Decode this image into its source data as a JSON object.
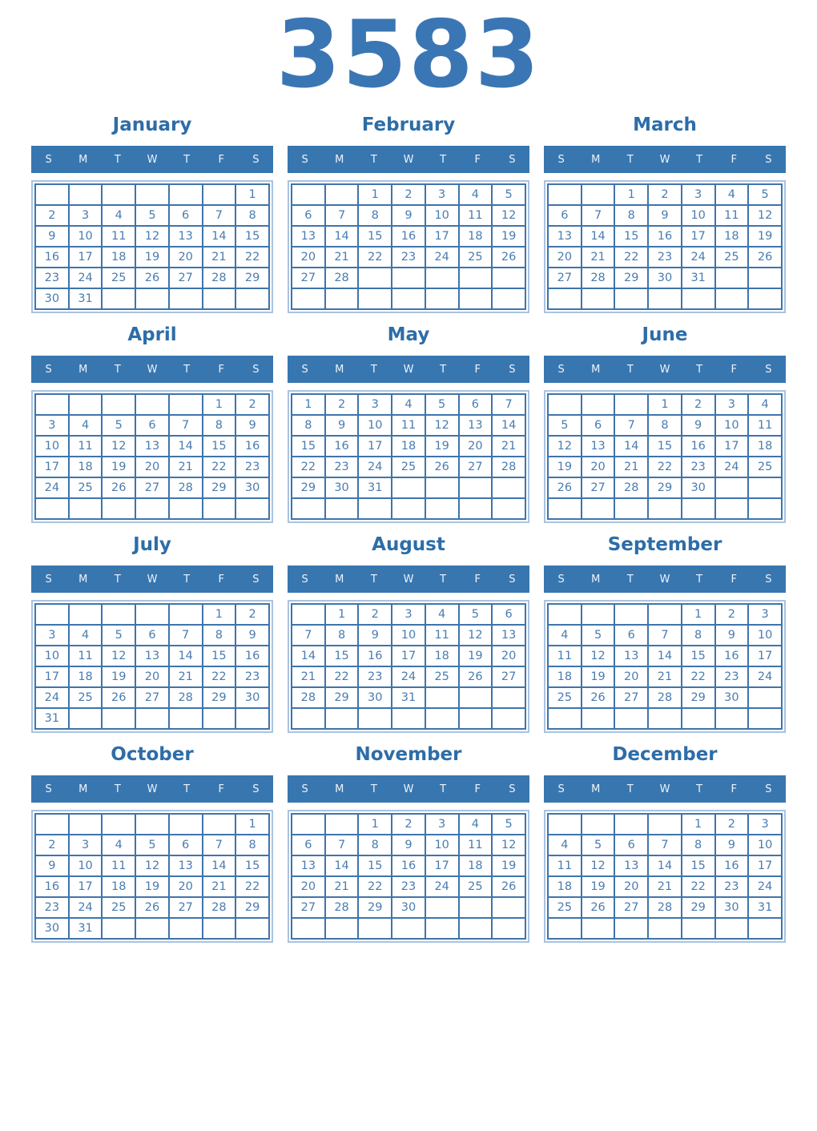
{
  "year": "3583",
  "weekday_headers": [
    "S",
    "M",
    "T",
    "W",
    "T",
    "F",
    "S"
  ],
  "months": [
    {
      "name": "January",
      "weeks": [
        [
          "",
          "",
          "",
          "",
          "",
          "",
          "1"
        ],
        [
          "2",
          "3",
          "4",
          "5",
          "6",
          "7",
          "8"
        ],
        [
          "9",
          "10",
          "11",
          "12",
          "13",
          "14",
          "15"
        ],
        [
          "16",
          "17",
          "18",
          "19",
          "20",
          "21",
          "22"
        ],
        [
          "23",
          "24",
          "25",
          "26",
          "27",
          "28",
          "29"
        ],
        [
          "30",
          "31",
          "",
          "",
          "",
          "",
          ""
        ]
      ]
    },
    {
      "name": "February",
      "weeks": [
        [
          "",
          "",
          "1",
          "2",
          "3",
          "4",
          "5"
        ],
        [
          "6",
          "7",
          "8",
          "9",
          "10",
          "11",
          "12"
        ],
        [
          "13",
          "14",
          "15",
          "16",
          "17",
          "18",
          "19"
        ],
        [
          "20",
          "21",
          "22",
          "23",
          "24",
          "25",
          "26"
        ],
        [
          "27",
          "28",
          "",
          "",
          "",
          "",
          ""
        ],
        [
          "",
          "",
          "",
          "",
          "",
          "",
          ""
        ]
      ]
    },
    {
      "name": "March",
      "weeks": [
        [
          "",
          "",
          "1",
          "2",
          "3",
          "4",
          "5"
        ],
        [
          "6",
          "7",
          "8",
          "9",
          "10",
          "11",
          "12"
        ],
        [
          "13",
          "14",
          "15",
          "16",
          "17",
          "18",
          "19"
        ],
        [
          "20",
          "21",
          "22",
          "23",
          "24",
          "25",
          "26"
        ],
        [
          "27",
          "28",
          "29",
          "30",
          "31",
          "",
          ""
        ],
        [
          "",
          "",
          "",
          "",
          "",
          "",
          ""
        ]
      ]
    },
    {
      "name": "April",
      "weeks": [
        [
          "",
          "",
          "",
          "",
          "",
          "1",
          "2"
        ],
        [
          "3",
          "4",
          "5",
          "6",
          "7",
          "8",
          "9"
        ],
        [
          "10",
          "11",
          "12",
          "13",
          "14",
          "15",
          "16"
        ],
        [
          "17",
          "18",
          "19",
          "20",
          "21",
          "22",
          "23"
        ],
        [
          "24",
          "25",
          "26",
          "27",
          "28",
          "29",
          "30"
        ],
        [
          "",
          "",
          "",
          "",
          "",
          "",
          ""
        ]
      ]
    },
    {
      "name": "May",
      "weeks": [
        [
          "1",
          "2",
          "3",
          "4",
          "5",
          "6",
          "7"
        ],
        [
          "8",
          "9",
          "10",
          "11",
          "12",
          "13",
          "14"
        ],
        [
          "15",
          "16",
          "17",
          "18",
          "19",
          "20",
          "21"
        ],
        [
          "22",
          "23",
          "24",
          "25",
          "26",
          "27",
          "28"
        ],
        [
          "29",
          "30",
          "31",
          "",
          "",
          "",
          ""
        ],
        [
          "",
          "",
          "",
          "",
          "",
          "",
          ""
        ]
      ]
    },
    {
      "name": "June",
      "weeks": [
        [
          "",
          "",
          "",
          "1",
          "2",
          "3",
          "4"
        ],
        [
          "5",
          "6",
          "7",
          "8",
          "9",
          "10",
          "11"
        ],
        [
          "12",
          "13",
          "14",
          "15",
          "16",
          "17",
          "18"
        ],
        [
          "19",
          "20",
          "21",
          "22",
          "23",
          "24",
          "25"
        ],
        [
          "26",
          "27",
          "28",
          "29",
          "30",
          "",
          ""
        ],
        [
          "",
          "",
          "",
          "",
          "",
          "",
          ""
        ]
      ]
    },
    {
      "name": "July",
      "weeks": [
        [
          "",
          "",
          "",
          "",
          "",
          "1",
          "2"
        ],
        [
          "3",
          "4",
          "5",
          "6",
          "7",
          "8",
          "9"
        ],
        [
          "10",
          "11",
          "12",
          "13",
          "14",
          "15",
          "16"
        ],
        [
          "17",
          "18",
          "19",
          "20",
          "21",
          "22",
          "23"
        ],
        [
          "24",
          "25",
          "26",
          "27",
          "28",
          "29",
          "30"
        ],
        [
          "31",
          "",
          "",
          "",
          "",
          "",
          ""
        ]
      ]
    },
    {
      "name": "August",
      "weeks": [
        [
          "",
          "1",
          "2",
          "3",
          "4",
          "5",
          "6"
        ],
        [
          "7",
          "8",
          "9",
          "10",
          "11",
          "12",
          "13"
        ],
        [
          "14",
          "15",
          "16",
          "17",
          "18",
          "19",
          "20"
        ],
        [
          "21",
          "22",
          "23",
          "24",
          "25",
          "26",
          "27"
        ],
        [
          "28",
          "29",
          "30",
          "31",
          "",
          "",
          ""
        ],
        [
          "",
          "",
          "",
          "",
          "",
          "",
          ""
        ]
      ]
    },
    {
      "name": "September",
      "weeks": [
        [
          "",
          "",
          "",
          "",
          "1",
          "2",
          "3"
        ],
        [
          "4",
          "5",
          "6",
          "7",
          "8",
          "9",
          "10"
        ],
        [
          "11",
          "12",
          "13",
          "14",
          "15",
          "16",
          "17"
        ],
        [
          "18",
          "19",
          "20",
          "21",
          "22",
          "23",
          "24"
        ],
        [
          "25",
          "26",
          "27",
          "28",
          "29",
          "30",
          ""
        ],
        [
          "",
          "",
          "",
          "",
          "",
          "",
          ""
        ]
      ]
    },
    {
      "name": "October",
      "weeks": [
        [
          "",
          "",
          "",
          "",
          "",
          "",
          "1"
        ],
        [
          "2",
          "3",
          "4",
          "5",
          "6",
          "7",
          "8"
        ],
        [
          "9",
          "10",
          "11",
          "12",
          "13",
          "14",
          "15"
        ],
        [
          "16",
          "17",
          "18",
          "19",
          "20",
          "21",
          "22"
        ],
        [
          "23",
          "24",
          "25",
          "26",
          "27",
          "28",
          "29"
        ],
        [
          "30",
          "31",
          "",
          "",
          "",
          "",
          ""
        ]
      ]
    },
    {
      "name": "November",
      "weeks": [
        [
          "",
          "",
          "1",
          "2",
          "3",
          "4",
          "5"
        ],
        [
          "6",
          "7",
          "8",
          "9",
          "10",
          "11",
          "12"
        ],
        [
          "13",
          "14",
          "15",
          "16",
          "17",
          "18",
          "19"
        ],
        [
          "20",
          "21",
          "22",
          "23",
          "24",
          "25",
          "26"
        ],
        [
          "27",
          "28",
          "29",
          "30",
          "",
          "",
          ""
        ],
        [
          "",
          "",
          "",
          "",
          "",
          "",
          ""
        ]
      ]
    },
    {
      "name": "December",
      "weeks": [
        [
          "",
          "",
          "",
          "",
          "1",
          "2",
          "3"
        ],
        [
          "4",
          "5",
          "6",
          "7",
          "8",
          "9",
          "10"
        ],
        [
          "11",
          "12",
          "13",
          "14",
          "15",
          "16",
          "17"
        ],
        [
          "18",
          "19",
          "20",
          "21",
          "22",
          "23",
          "24"
        ],
        [
          "25",
          "26",
          "27",
          "28",
          "29",
          "30",
          "31"
        ],
        [
          "",
          "",
          "",
          "",
          "",
          "",
          ""
        ]
      ]
    }
  ],
  "colors": {
    "year_title": "#3b76b4",
    "month_title": "#2d6da8",
    "band_background": "#3876b0",
    "band_text": "#eef3f9",
    "cell_border": "#3f74ac",
    "outer_border": "#a9c3e1",
    "day_text": "#4a7cb0",
    "page_background": "#ffffff"
  }
}
